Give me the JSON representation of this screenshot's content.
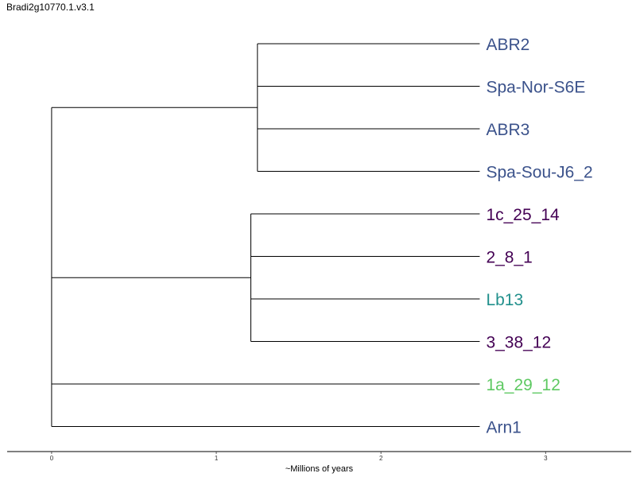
{
  "title": "Bradi2g10770.1.v3.1",
  "tree": {
    "tips": [
      {
        "label": "ABR2",
        "color": "#3b528b"
      },
      {
        "label": "Spa-Nor-S6E",
        "color": "#3b528b"
      },
      {
        "label": "ABR3",
        "color": "#3b528b"
      },
      {
        "label": "Spa-Sou-J6_2",
        "color": "#3b528b"
      },
      {
        "label": "1c_25_14",
        "color": "#440154"
      },
      {
        "label": "2_8_1",
        "color": "#440154"
      },
      {
        "label": "Lb13",
        "color": "#21908c"
      },
      {
        "label": "3_38_12",
        "color": "#440154"
      },
      {
        "label": "1a_29_12",
        "color": "#5ec962"
      },
      {
        "label": "Arn1",
        "color": "#3b528b"
      }
    ],
    "clades": [
      {
        "height": 1.25,
        "tips": [
          0,
          1,
          2,
          3
        ]
      },
      {
        "height": 1.21,
        "tips": [
          4,
          5,
          6,
          7
        ]
      }
    ],
    "tip_time": 2.6
  },
  "axis": {
    "label": "~Millions of years",
    "ticks": [
      "0",
      "1",
      "2",
      "3"
    ],
    "range": [
      -0.27,
      3.52
    ]
  }
}
